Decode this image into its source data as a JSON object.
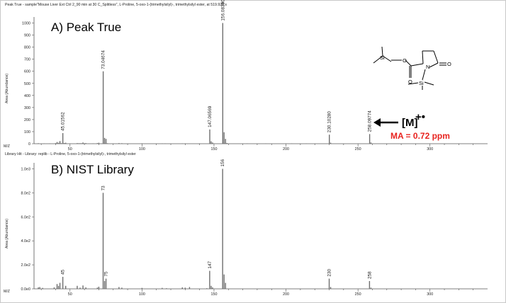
{
  "chart_data": [
    {
      "type": "bar",
      "panel": "A) Peak True",
      "header": "Peak True - sample\"Mouse Liver Ext Ctrl 2_90 min at 30 C_Splitless\", L-Proline, 5-oxo-1-(trimethylsilyl)-, trimethylsilyl ester, at 519.928 s",
      "ylabel": "Area (Abundance)",
      "xlabel": "M/Z",
      "xlim": [
        25,
        340
      ],
      "ylim": [
        0,
        1050
      ],
      "xticks": [
        50,
        100,
        150,
        200,
        250,
        300
      ],
      "yticks": [
        {
          "value": 0,
          "label": "0"
        },
        {
          "value": 100,
          "label": "100"
        },
        {
          "value": 200,
          "label": "200"
        },
        {
          "value": 300,
          "label": "300"
        },
        {
          "value": 400,
          "label": "400"
        },
        {
          "value": 500,
          "label": "500"
        },
        {
          "value": 600,
          "label": "600"
        },
        {
          "value": 700,
          "label": "700"
        },
        {
          "value": 800,
          "label": "800"
        },
        {
          "value": 900,
          "label": "900"
        },
        {
          "value": 1000,
          "label": "1000"
        }
      ],
      "peaks": [
        {
          "x": 28,
          "y": 4
        },
        {
          "x": 32,
          "y": 3
        },
        {
          "x": 36,
          "y": 3
        },
        {
          "x": 40,
          "y": 5
        },
        {
          "x": 41,
          "y": 14
        },
        {
          "x": 42,
          "y": 8
        },
        {
          "x": 43,
          "y": 22
        },
        {
          "x": 44,
          "y": 5
        },
        {
          "x": 45.01562,
          "y": 88,
          "label": "45.01562"
        },
        {
          "x": 46,
          "y": 6
        },
        {
          "x": 47,
          "y": 8
        },
        {
          "x": 55,
          "y": 5
        },
        {
          "x": 56,
          "y": 4
        },
        {
          "x": 57,
          "y": 4
        },
        {
          "x": 58,
          "y": 4
        },
        {
          "x": 59,
          "y": 10
        },
        {
          "x": 60,
          "y": 4
        },
        {
          "x": 61,
          "y": 5
        },
        {
          "x": 66,
          "y": 3
        },
        {
          "x": 69,
          "y": 5
        },
        {
          "x": 70,
          "y": 8
        },
        {
          "x": 72,
          "y": 3
        },
        {
          "x": 73.04674,
          "y": 600,
          "label": "73.04674"
        },
        {
          "x": 74,
          "y": 48
        },
        {
          "x": 75,
          "y": 40
        },
        {
          "x": 76,
          "y": 4
        },
        {
          "x": 84,
          "y": 5
        },
        {
          "x": 86,
          "y": 4
        },
        {
          "x": 100,
          "y": 3
        },
        {
          "x": 114,
          "y": 3
        },
        {
          "x": 116,
          "y": 3
        },
        {
          "x": 128,
          "y": 3
        },
        {
          "x": 130,
          "y": 3
        },
        {
          "x": 140,
          "y": 3
        },
        {
          "x": 147.06569,
          "y": 118,
          "label": "147.06569"
        },
        {
          "x": 148,
          "y": 20
        },
        {
          "x": 149,
          "y": 10
        },
        {
          "x": 156.0839,
          "y": 1000,
          "label": "156.08390"
        },
        {
          "x": 157,
          "y": 95
        },
        {
          "x": 158,
          "y": 40
        },
        {
          "x": 159,
          "y": 6
        },
        {
          "x": 173,
          "y": 3
        },
        {
          "x": 186,
          "y": 3
        },
        {
          "x": 204,
          "y": 3
        },
        {
          "x": 214,
          "y": 3
        },
        {
          "x": 230.1028,
          "y": 75,
          "label": "230.10280"
        },
        {
          "x": 231,
          "y": 8
        },
        {
          "x": 258.09774,
          "y": 80,
          "label": "258.09774"
        },
        {
          "x": 259,
          "y": 10
        }
      ],
      "annotations": {
        "ion_label": "[M]",
        "ion_charge": "+•",
        "ma_text": "MA = 0.72 ppm"
      }
    },
    {
      "type": "bar",
      "panel": "B) NIST Library",
      "header": "Library Hit - Library: replib - L-Proline, 5-oxo-1-(trimethylsilyl)-, trimethylsilyl ester",
      "ylabel": "Area (Abundance)",
      "xlabel": "M/Z",
      "xlim": [
        25,
        340
      ],
      "ylim": [
        0,
        1050
      ],
      "xticks": [
        50,
        100,
        150,
        200,
        250,
        300
      ],
      "yticks": [
        {
          "value": 0,
          "label": "0.0e0"
        },
        {
          "value": 200,
          "label": "2.0e2"
        },
        {
          "value": 400,
          "label": "4.0e2"
        },
        {
          "value": 600,
          "label": "6.0e2"
        },
        {
          "value": 800,
          "label": "8.0e2"
        },
        {
          "value": 1000,
          "label": "1.0e3"
        }
      ],
      "peaks": [
        {
          "x": 28,
          "y": 12
        },
        {
          "x": 29,
          "y": 15
        },
        {
          "x": 31,
          "y": 8
        },
        {
          "x": 39,
          "y": 12
        },
        {
          "x": 41,
          "y": 40
        },
        {
          "x": 42,
          "y": 25
        },
        {
          "x": 43,
          "y": 50
        },
        {
          "x": 45,
          "y": 100,
          "label": "45"
        },
        {
          "x": 47,
          "y": 25
        },
        {
          "x": 55,
          "y": 25
        },
        {
          "x": 57,
          "y": 10
        },
        {
          "x": 59,
          "y": 28
        },
        {
          "x": 61,
          "y": 12
        },
        {
          "x": 69,
          "y": 10
        },
        {
          "x": 70,
          "y": 18
        },
        {
          "x": 73,
          "y": 800,
          "label": "73"
        },
        {
          "x": 74,
          "y": 65
        },
        {
          "x": 75,
          "y": 85,
          "label": "75"
        },
        {
          "x": 84,
          "y": 15
        },
        {
          "x": 86,
          "y": 10
        },
        {
          "x": 100,
          "y": 8
        },
        {
          "x": 114,
          "y": 8
        },
        {
          "x": 117,
          "y": 5
        },
        {
          "x": 128,
          "y": 12
        },
        {
          "x": 130,
          "y": 10
        },
        {
          "x": 133,
          "y": 15
        },
        {
          "x": 145,
          "y": 5
        },
        {
          "x": 147,
          "y": 150,
          "label": "147"
        },
        {
          "x": 148,
          "y": 25
        },
        {
          "x": 149,
          "y": 12
        },
        {
          "x": 156,
          "y": 1000,
          "label": "156"
        },
        {
          "x": 157,
          "y": 120
        },
        {
          "x": 158,
          "y": 50
        },
        {
          "x": 230,
          "y": 85,
          "label": "230"
        },
        {
          "x": 231,
          "y": 15
        },
        {
          "x": 258,
          "y": 65,
          "label": "258"
        },
        {
          "x": 259,
          "y": 10
        }
      ]
    }
  ],
  "structure_labels": {
    "si_left": "Si",
    "si_bottom": "Si",
    "o_ring": "O",
    "n_ring": "N",
    "o_ester": "O",
    "o_carbonyl": "O"
  }
}
